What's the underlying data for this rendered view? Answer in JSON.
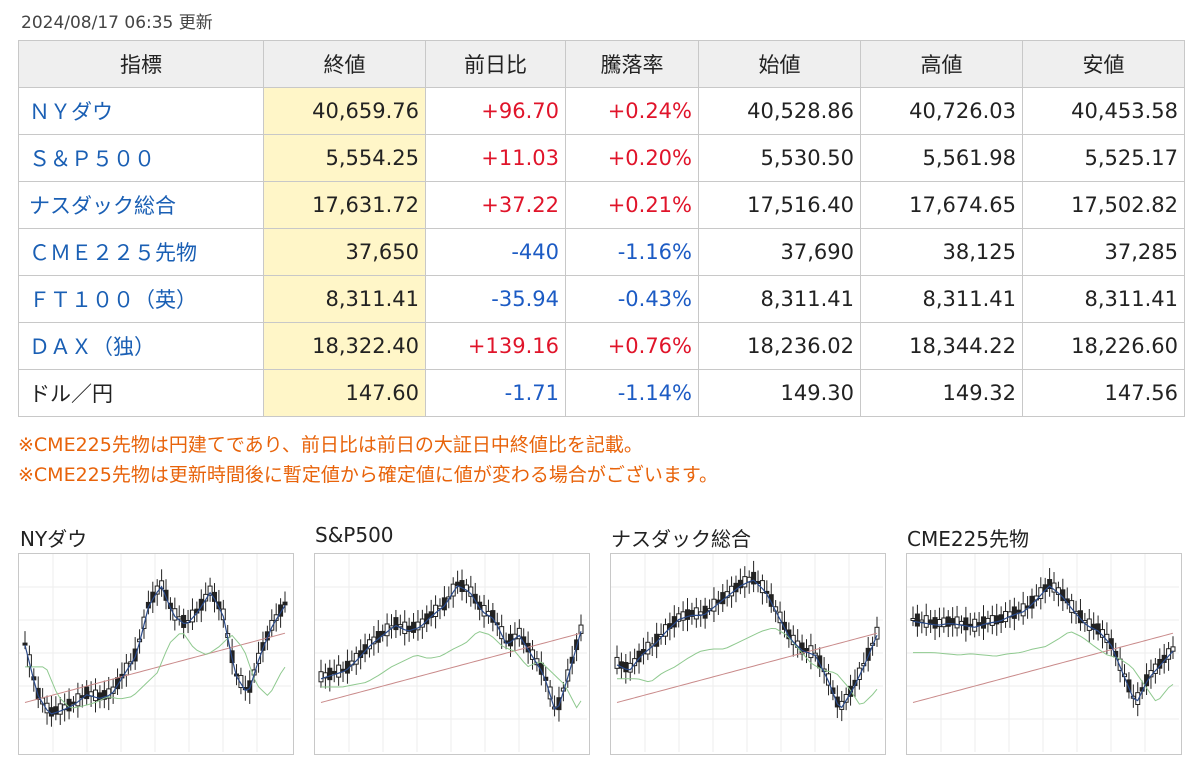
{
  "updated": "2024/08/17 06:35 更新",
  "table": {
    "headers": [
      "指標",
      "終値",
      "前日比",
      "騰落率",
      "始値",
      "高値",
      "安値"
    ],
    "rows": [
      {
        "name": "ＮＹダウ",
        "link": true,
        "close": "40,659.76",
        "change": "+96.70",
        "pct": "+0.24%",
        "open": "40,528.86",
        "high": "40,726.03",
        "low": "40,453.58",
        "dir": "up"
      },
      {
        "name": "Ｓ＆Ｐ５００",
        "link": true,
        "close": "5,554.25",
        "change": "+11.03",
        "pct": "+0.20%",
        "open": "5,530.50",
        "high": "5,561.98",
        "low": "5,525.17",
        "dir": "up"
      },
      {
        "name": "ナスダック総合",
        "link": true,
        "close": "17,631.72",
        "change": "+37.22",
        "pct": "+0.21%",
        "open": "17,516.40",
        "high": "17,674.65",
        "low": "17,502.82",
        "dir": "up"
      },
      {
        "name": "ＣＭＥ２２５先物",
        "link": true,
        "close": "37,650",
        "change": "-440",
        "pct": "-1.16%",
        "open": "37,690",
        "high": "38,125",
        "low": "37,285",
        "dir": "down"
      },
      {
        "name": "ＦＴ１００（英）",
        "link": true,
        "close": "8,311.41",
        "change": "-35.94",
        "pct": "-0.43%",
        "open": "8,311.41",
        "high": "8,311.41",
        "low": "8,311.41",
        "dir": "down"
      },
      {
        "name": "ＤＡＸ（独）",
        "link": true,
        "close": "18,322.40",
        "change": "+139.16",
        "pct": "+0.76%",
        "open": "18,236.02",
        "high": "18,344.22",
        "low": "18,226.60",
        "dir": "up"
      },
      {
        "name": "ドル／円",
        "link": false,
        "close": "147.60",
        "change": "-1.71",
        "pct": "-1.14%",
        "open": "149.30",
        "high": "149.32",
        "low": "147.56",
        "dir": "down"
      }
    ]
  },
  "notes": [
    "※CME225先物は円建てであり、前日比は前日の大証日中終値比を記載。",
    "※CME225先物は更新時間後に暫定値から確定値に値が変わる場合がございます。"
  ],
  "charts": [
    {
      "title": "NYダウ"
    },
    {
      "title": "S&P500"
    },
    {
      "title": "ナスダック総合"
    },
    {
      "title": "CME225先物"
    }
  ],
  "colors": {
    "up": "#e0142a",
    "down": "#1c5bc4",
    "link": "#1a5fb4",
    "note": "#e8630a",
    "close_bg": "#fff6c8"
  }
}
